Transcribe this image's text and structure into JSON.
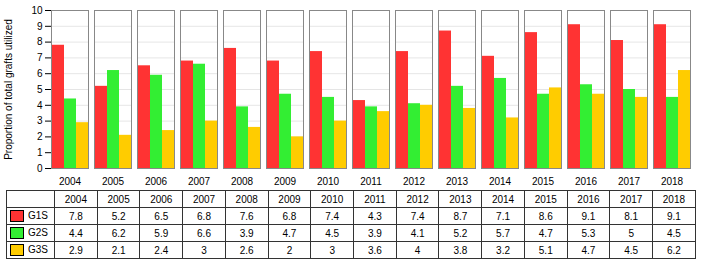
{
  "chart_data": {
    "type": "bar",
    "categories": [
      "2004",
      "2005",
      "2006",
      "2007",
      "2008",
      "2009",
      "2010",
      "2011",
      "2012",
      "2013",
      "2014",
      "2015",
      "2016",
      "2017",
      "2018"
    ],
    "series": [
      {
        "name": "G1S",
        "color": "#FF3333",
        "values": [
          7.8,
          5.2,
          6.5,
          6.8,
          7.6,
          6.8,
          7.4,
          4.3,
          7.4,
          8.7,
          7.1,
          8.6,
          9.1,
          8.1,
          9.1
        ]
      },
      {
        "name": "G2S",
        "color": "#33EE33",
        "values": [
          4.4,
          6.2,
          5.9,
          6.6,
          3.9,
          4.7,
          4.5,
          3.9,
          4.1,
          5.2,
          5.7,
          4.7,
          5.3,
          5.0,
          4.5
        ]
      },
      {
        "name": "G3S",
        "color": "#FFCC00",
        "values": [
          2.9,
          2.1,
          2.4,
          3.0,
          2.6,
          2.0,
          3.0,
          3.6,
          4.0,
          3.8,
          3.2,
          5.1,
          4.7,
          4.5,
          6.2
        ]
      }
    ],
    "ylabel": "Proportion of total grafts utilized",
    "ylim": [
      0,
      10
    ],
    "yticks": [
      0,
      1,
      2,
      3,
      4,
      5,
      6,
      7,
      8,
      9,
      10
    ],
    "grid": true,
    "legend": "bottom"
  }
}
